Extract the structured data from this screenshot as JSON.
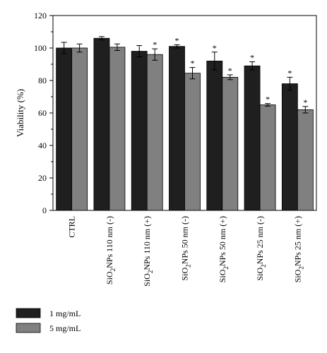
{
  "chart_data": {
    "type": "bar",
    "ylabel": "Viability (%)",
    "xlabel": "",
    "ylim": [
      0,
      120
    ],
    "yticks": [
      0,
      20,
      40,
      60,
      80,
      100,
      120
    ],
    "categories": [
      {
        "label": "CTRL",
        "prefix": "CTRL",
        "subscript": "",
        "suffix": ""
      },
      {
        "label": "SiO2NPs 110 nm (-)",
        "prefix": "SiO",
        "subscript": "2",
        "suffix": "NPs 110 nm (-)"
      },
      {
        "label": "SiO2NPs 110 nm (+)",
        "prefix": "SiO",
        "subscript": "2",
        "suffix": "NPs 110 nm (+)"
      },
      {
        "label": "SiO2NPs 50 nm (-)",
        "prefix": "SiO",
        "subscript": "2",
        "suffix": "NPs 50 nm (-)"
      },
      {
        "label": "SiO2NPs 50 nm (+)",
        "prefix": "SiO",
        "subscript": "2",
        "suffix": "NPs 50 nm (+)"
      },
      {
        "label": "SiO2NPs 25 nm (-)",
        "prefix": "SiO",
        "subscript": "2",
        "suffix": "NPs 25 nm (-)"
      },
      {
        "label": "SiO2NPs 25 nm (+)",
        "prefix": "SiO",
        "subscript": "2",
        "suffix": "NPs 25 nm (+)"
      }
    ],
    "series": [
      {
        "name": "1 mg/mL",
        "color": "#1f1f1f",
        "values": [
          100,
          106,
          98,
          101,
          92,
          89,
          78
        ],
        "errors": [
          3.5,
          1,
          3.5,
          1,
          5.5,
          2.5,
          4
        ],
        "significant": [
          false,
          false,
          false,
          true,
          true,
          true,
          true
        ]
      },
      {
        "name": "5 mg/mL",
        "color": "#808080",
        "values": [
          100,
          100.5,
          96,
          84.5,
          82,
          65,
          62
        ],
        "errors": [
          2.5,
          2,
          3.5,
          3.5,
          1.5,
          0.8,
          2
        ],
        "significant": [
          false,
          false,
          true,
          true,
          true,
          true,
          true
        ]
      }
    ],
    "significance_marker": "*",
    "legend_position": "bottom-left",
    "grid": false
  }
}
